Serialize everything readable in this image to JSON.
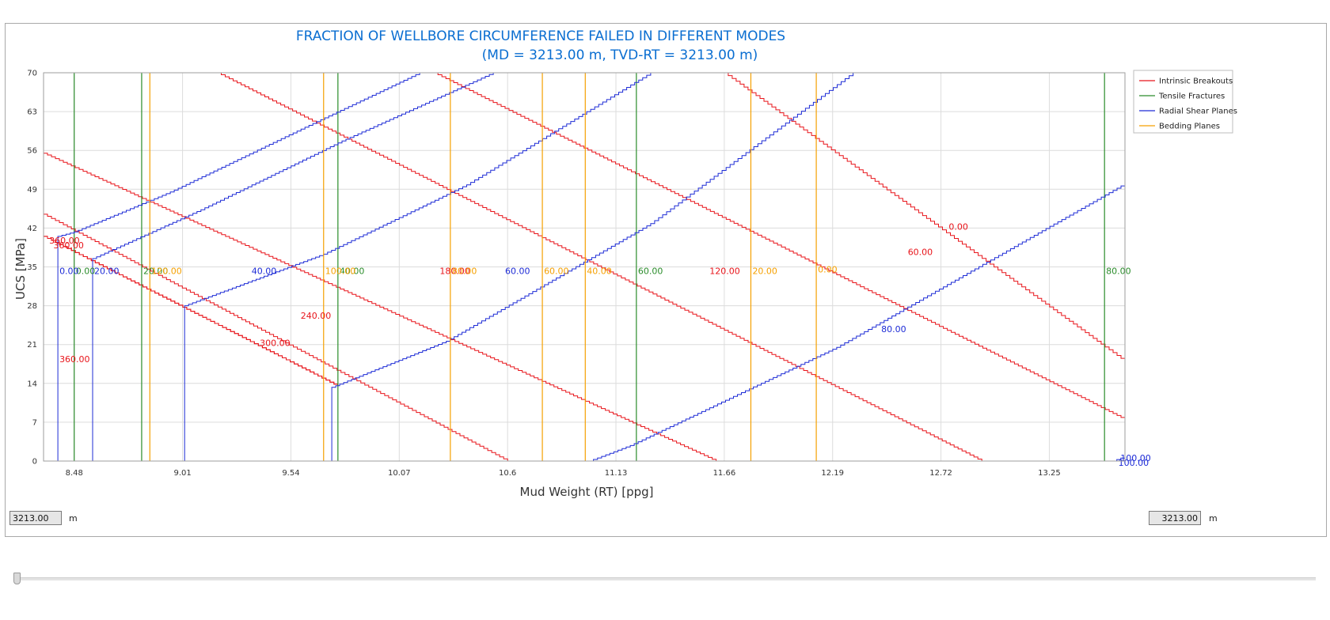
{
  "chart_data": {
    "type": "line",
    "title": "FRACTION OF WELLBORE CIRCUMFERENCE FAILED IN DIFFERENT MODES",
    "subtitle": "(MD = 3213.00 m, TVD-RT = 3213.00 m)",
    "xlabel": "Mud Weight (RT) [ppg]",
    "ylabel": "UCS [MPa]",
    "xlim": [
      8.33,
      13.62
    ],
    "ylim": [
      0,
      70
    ],
    "x_ticks": [
      "8.48",
      "9.01",
      "9.54",
      "10.07",
      "10.6",
      "11.13",
      "11.66",
      "12.19",
      "12.72",
      "13.25"
    ],
    "x_tick_values": [
      8.48,
      9.01,
      9.54,
      10.07,
      10.6,
      11.13,
      11.66,
      12.19,
      12.72,
      13.25
    ],
    "y_ticks": [
      "0",
      "7",
      "14",
      "21",
      "28",
      "35",
      "42",
      "49",
      "56",
      "63",
      "70"
    ],
    "y_tick_values": [
      0,
      7,
      14,
      21,
      28,
      35,
      42,
      49,
      56,
      63,
      70
    ],
    "grid": true,
    "legend_position": "right",
    "series": [
      {
        "name": "Intrinsic Breakouts",
        "color": "#e8141a",
        "curves": [
          {
            "label": "0.00",
            "points": [
              [
                11.66,
                70
              ],
              [
                13.62,
                18
              ]
            ]
          },
          {
            "label": "60.00",
            "points": [
              [
                10.24,
                70
              ],
              [
                13.62,
                7.5
              ]
            ]
          },
          {
            "label": "120.00",
            "points": [
              [
                9.18,
                70
              ],
              [
                12.92,
                0
              ]
            ]
          },
          {
            "label": "180.00",
            "points": [
              [
                8.33,
                55.5
              ],
              [
                11.62,
                0
              ]
            ]
          },
          {
            "label": "240.00",
            "points": [
              [
                8.33,
                44.5
              ],
              [
                10.6,
                0
              ]
            ]
          },
          {
            "label": "300.00",
            "points": [
              [
                8.33,
                40.5
              ],
              [
                9.77,
                13.5
              ]
            ]
          },
          {
            "label": "360.00",
            "points": [
              [
                8.33,
                40.5
              ],
              [
                9.77,
                13.5
              ]
            ]
          }
        ],
        "labels": [
          {
            "text": "0.00",
            "x": 12.75,
            "y": 42.3
          },
          {
            "text": "60.00",
            "x": 12.55,
            "y": 37.7
          },
          {
            "text": "120.00",
            "x": 11.58,
            "y": 34.3
          },
          {
            "text": "180.00",
            "x": 10.26,
            "y": 34.3
          },
          {
            "text": "240.00",
            "x": 9.58,
            "y": 26.2
          },
          {
            "text": "300.00",
            "x": 9.38,
            "y": 21.3
          },
          {
            "text": "360.00",
            "x": 8.35,
            "y": 39.8
          },
          {
            "text": "360.00",
            "x": 8.37,
            "y": 38.9
          },
          {
            "text": "360.00",
            "x": 8.4,
            "y": 18.4
          }
        ]
      },
      {
        "name": "Tensile Fractures",
        "color": "#2a8c2a",
        "vlines": [
          8.48,
          8.81,
          9.77,
          11.23,
          13.52
        ],
        "labels": [
          {
            "text": "0.00",
            "x": 8.48,
            "y": 34.3
          },
          {
            "text": "20.00",
            "x": 8.81,
            "y": 34.3
          },
          {
            "text": "40.00",
            "x": 9.77,
            "y": 34.3
          },
          {
            "text": "60.00",
            "x": 11.23,
            "y": 34.3
          },
          {
            "text": "80.00",
            "x": 13.52,
            "y": 34.3
          }
        ]
      },
      {
        "name": "Radial Shear Planes",
        "color": "#1d2bd6",
        "curves": [
          {
            "label": "0.00",
            "points": [
              [
                8.4,
                0
              ],
              [
                8.4,
                40.5
              ],
              [
                8.48,
                41.3
              ],
              [
                8.95,
                48.5
              ],
              [
                9.57,
                59.5
              ],
              [
                10.17,
                70
              ]
            ]
          },
          {
            "label": "20.00",
            "points": [
              [
                8.57,
                0
              ],
              [
                8.57,
                36.5
              ],
              [
                9.1,
                45.3
              ],
              [
                9.79,
                57.7
              ],
              [
                10.53,
                70
              ]
            ]
          },
          {
            "label": "40.00",
            "points": [
              [
                9.02,
                0
              ],
              [
                9.02,
                28
              ],
              [
                9.7,
                37.3
              ],
              [
                10.4,
                49.8
              ],
              [
                11.3,
                70
              ]
            ]
          },
          {
            "label": "60.00",
            "points": [
              [
                9.74,
                0
              ],
              [
                9.74,
                13.3
              ],
              [
                10.3,
                21.6
              ],
              [
                11.3,
                42.8
              ],
              [
                12.29,
                70
              ]
            ]
          },
          {
            "label": "80.00",
            "points": [
              [
                11.0,
                0
              ],
              [
                11.2,
                2.8
              ],
              [
                12.21,
                20.5
              ],
              [
                13.62,
                50
              ]
            ]
          },
          {
            "label": "100.00",
            "points": [
              [
                13.56,
                0
              ],
              [
                13.62,
                0.8
              ]
            ]
          }
        ],
        "labels": [
          {
            "text": "0.00",
            "x": 8.4,
            "y": 34.3
          },
          {
            "text": "20.00",
            "x": 8.57,
            "y": 34.3
          },
          {
            "text": "40.00",
            "x": 9.34,
            "y": 34.3
          },
          {
            "text": "60.00",
            "x": 10.58,
            "y": 34.3
          },
          {
            "text": "80.00",
            "x": 12.42,
            "y": 23.8
          },
          {
            "text": "100.00",
            "x": 13.59,
            "y": 0.6
          },
          {
            "text": "100.00",
            "x": 13.58,
            "y": -0.3
          }
        ]
      },
      {
        "name": "Bedding Planes",
        "color": "#f5a000",
        "vlines": [
          8.85,
          9.7,
          10.32,
          10.77,
          10.98,
          11.79,
          12.11
        ],
        "labels": [
          {
            "text": "0.00",
            "x": 12.11,
            "y": 34.6
          },
          {
            "text": "20.00",
            "x": 11.79,
            "y": 34.3
          },
          {
            "text": "40.00",
            "x": 10.98,
            "y": 34.3
          },
          {
            "text": "60.00",
            "x": 10.77,
            "y": 34.3
          },
          {
            "text": "80.00",
            "x": 10.32,
            "y": 34.3
          },
          {
            "text": "100.00",
            "x": 9.7,
            "y": 34.3
          },
          {
            "text": "120.00",
            "x": 8.85,
            "y": 34.3
          }
        ]
      }
    ]
  },
  "controls": {
    "left_depth_value": "3213.00",
    "left_depth_unit": "m",
    "right_depth_value": "3213.00",
    "right_depth_unit": "m",
    "slider_position": 0
  }
}
